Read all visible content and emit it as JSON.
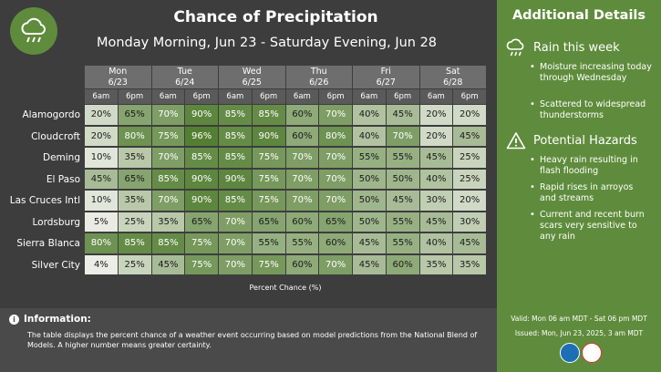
{
  "header": {
    "title": "Chance of Precipitation",
    "subtitle": "Monday Morning, Jun 23 - Saturday Evening, Jun 28",
    "logo_icon": "cloud-rain-icon"
  },
  "table": {
    "days": [
      {
        "day": "Mon",
        "date": "6/23"
      },
      {
        "day": "Tue",
        "date": "6/24"
      },
      {
        "day": "Wed",
        "date": "6/25"
      },
      {
        "day": "Thu",
        "date": "6/26"
      },
      {
        "day": "Fri",
        "date": "6/27"
      },
      {
        "day": "Sat",
        "date": "6/28"
      }
    ],
    "times": [
      "6am",
      "6pm"
    ],
    "locations": [
      {
        "name": "Alamogordo",
        "values": [
          "20%",
          "65%",
          "70%",
          "90%",
          "85%",
          "85%",
          "60%",
          "70%",
          "40%",
          "45%",
          "20%",
          "20%"
        ]
      },
      {
        "name": "Cloudcroft",
        "values": [
          "20%",
          "80%",
          "75%",
          "96%",
          "85%",
          "90%",
          "60%",
          "80%",
          "40%",
          "70%",
          "20%",
          "45%"
        ]
      },
      {
        "name": "Deming",
        "values": [
          "10%",
          "35%",
          "70%",
          "85%",
          "85%",
          "75%",
          "70%",
          "70%",
          "55%",
          "55%",
          "45%",
          "25%"
        ]
      },
      {
        "name": "El Paso",
        "values": [
          "45%",
          "65%",
          "85%",
          "90%",
          "90%",
          "75%",
          "70%",
          "70%",
          "50%",
          "50%",
          "40%",
          "25%"
        ]
      },
      {
        "name": "Las Cruces Intl",
        "values": [
          "10%",
          "35%",
          "70%",
          "90%",
          "85%",
          "75%",
          "70%",
          "70%",
          "50%",
          "45%",
          "30%",
          "20%"
        ]
      },
      {
        "name": "Lordsburg",
        "values": [
          "5%",
          "25%",
          "35%",
          "65%",
          "70%",
          "65%",
          "60%",
          "65%",
          "50%",
          "55%",
          "45%",
          "30%"
        ]
      },
      {
        "name": "Sierra Blanca",
        "values": [
          "80%",
          "85%",
          "85%",
          "75%",
          "70%",
          "55%",
          "55%",
          "60%",
          "45%",
          "55%",
          "40%",
          "45%"
        ]
      },
      {
        "name": "Silver City",
        "values": [
          "4%",
          "25%",
          "45%",
          "75%",
          "70%",
          "75%",
          "60%",
          "70%",
          "45%",
          "60%",
          "35%",
          "35%"
        ]
      }
    ],
    "axis_label": "Percent Chance (%)"
  },
  "info": {
    "title": "Information:",
    "icon": "info-icon",
    "text": "The table displays the percent chance of a weather event occurring based on model predictions from the National Blend of Models. A higher number means greater certainty."
  },
  "side": {
    "title": "Additional Details",
    "rain": {
      "heading": "Rain this week",
      "icon": "cloud-rain-icon",
      "bullets": [
        "Moisture increasing today through Wednesday",
        "Scattered to widespread thunderstorms"
      ]
    },
    "hazards": {
      "heading": "Potential Hazards",
      "icon": "warning-triangle-icon",
      "bullets": [
        "Heavy rain resulting in flash flooding",
        "Rapid rises in arroyos and streams",
        "Current and recent burn scars very sensitive to any rain"
      ]
    },
    "valid": "Valid: Mon 06 am MDT - Sat 06 pm MDT",
    "issued": "Issued: Mon, Jun 23, 2025, 3 am MDT"
  },
  "colors": {
    "sidebar": "#5f8c3c",
    "background": "#3d3d3d",
    "scale_low": "#f2f2ee",
    "scale_high": "#4c7a2a"
  }
}
